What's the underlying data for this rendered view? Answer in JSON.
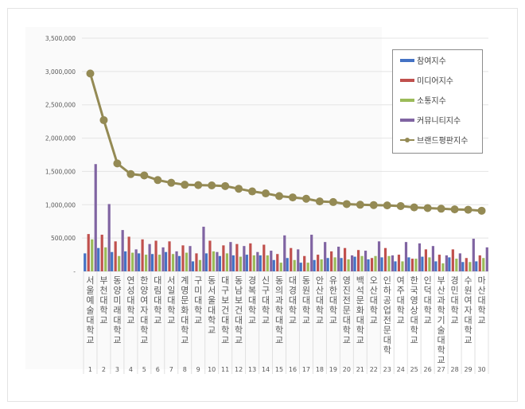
{
  "chart_data": {
    "type": "bar",
    "title": "",
    "xlabel": "",
    "ylabel": "",
    "ylim": [
      0,
      3500000
    ],
    "y_ticks": [
      "-",
      "500,000",
      "1,000,000",
      "1,500,000",
      "2,000,000",
      "2,500,000",
      "3,000,000",
      "3,500,000"
    ],
    "grid": true,
    "legend_position": "right",
    "categories": [
      "서울예술대학교",
      "부천대학교",
      "동양미래대학교",
      "연성대학교",
      "한양여자대학교",
      "대림대학교",
      "서일대학교",
      "계명문화대학교",
      "구미대학교",
      "동서울대학교",
      "대구보건대학교",
      "동남보건대학교",
      "경복대학교",
      "신구대학교",
      "동의과학대학교",
      "대경대학교",
      "동원대학교",
      "안산대학교",
      "유한대학교",
      "영진전문대학교",
      "백석문화대학교",
      "오산대학교",
      "인하공업전문대학",
      "여주대학교",
      "한국영상대학교",
      "인덕대학교",
      "부산과학기술대학교",
      "경민대학교",
      "수원여자대학교",
      "마산대학교"
    ],
    "ranks": [
      "1",
      "2",
      "3",
      "4",
      "5",
      "6",
      "7",
      "8",
      "9",
      "10",
      "11",
      "12",
      "13",
      "14",
      "15",
      "16",
      "17",
      "18",
      "19",
      "20",
      "21",
      "22",
      "23",
      "24",
      "25",
      "26",
      "27",
      "28",
      "29",
      "30"
    ],
    "series": [
      {
        "name": "참여지수",
        "type": "bar",
        "color": "#4472c4",
        "values": [
          270000,
          350000,
          290000,
          300000,
          270000,
          260000,
          290000,
          230000,
          150000,
          270000,
          230000,
          240000,
          250000,
          240000,
          170000,
          200000,
          130000,
          170000,
          200000,
          200000,
          220000,
          180000,
          210000,
          150000,
          210000,
          220000,
          150000,
          210000,
          140000,
          150000
        ]
      },
      {
        "name": "미디어지수",
        "type": "bar",
        "color": "#c0504d",
        "values": [
          560000,
          550000,
          450000,
          520000,
          480000,
          460000,
          450000,
          390000,
          270000,
          460000,
          390000,
          410000,
          420000,
          400000,
          260000,
          350000,
          230000,
          250000,
          300000,
          350000,
          320000,
          200000,
          350000,
          250000,
          190000,
          330000,
          250000,
          330000,
          200000,
          240000
        ]
      },
      {
        "name": "소통지수",
        "type": "bar",
        "color": "#9bbb59",
        "values": [
          480000,
          360000,
          230000,
          280000,
          250000,
          250000,
          260000,
          280000,
          170000,
          300000,
          270000,
          220000,
          240000,
          240000,
          130000,
          170000,
          130000,
          180000,
          210000,
          180000,
          230000,
          230000,
          230000,
          150000,
          190000,
          210000,
          120000,
          190000,
          140000,
          200000
        ]
      },
      {
        "name": "커뮤니티지수",
        "type": "bar",
        "color": "#8064a2",
        "values": [
          1610000,
          1010000,
          620000,
          330000,
          410000,
          360000,
          300000,
          380000,
          670000,
          290000,
          440000,
          380000,
          290000,
          310000,
          540000,
          330000,
          550000,
          440000,
          370000,
          240000,
          310000,
          450000,
          240000,
          440000,
          420000,
          380000,
          240000,
          270000,
          490000,
          360000
        ]
      },
      {
        "name": "브랜드평판지수",
        "type": "line",
        "color": "#948a54",
        "values": [
          2970000,
          2270000,
          1620000,
          1460000,
          1440000,
          1370000,
          1330000,
          1300000,
          1295000,
          1290000,
          1280000,
          1240000,
          1200000,
          1170000,
          1130000,
          1110000,
          1090000,
          1050000,
          1040000,
          1010000,
          1000000,
          995000,
          990000,
          980000,
          960000,
          950000,
          940000,
          930000,
          925000,
          910000
        ]
      }
    ]
  },
  "legend": {
    "items": [
      {
        "label": "참여지수",
        "color": "#4472c4",
        "kind": "bar"
      },
      {
        "label": "미디어지수",
        "color": "#c0504d",
        "kind": "bar"
      },
      {
        "label": "소통지수",
        "color": "#9bbb59",
        "kind": "bar"
      },
      {
        "label": "커뮤니티지수",
        "color": "#8064a2",
        "kind": "bar"
      },
      {
        "label": "브랜드평판지수",
        "color": "#948a54",
        "kind": "line"
      }
    ]
  }
}
